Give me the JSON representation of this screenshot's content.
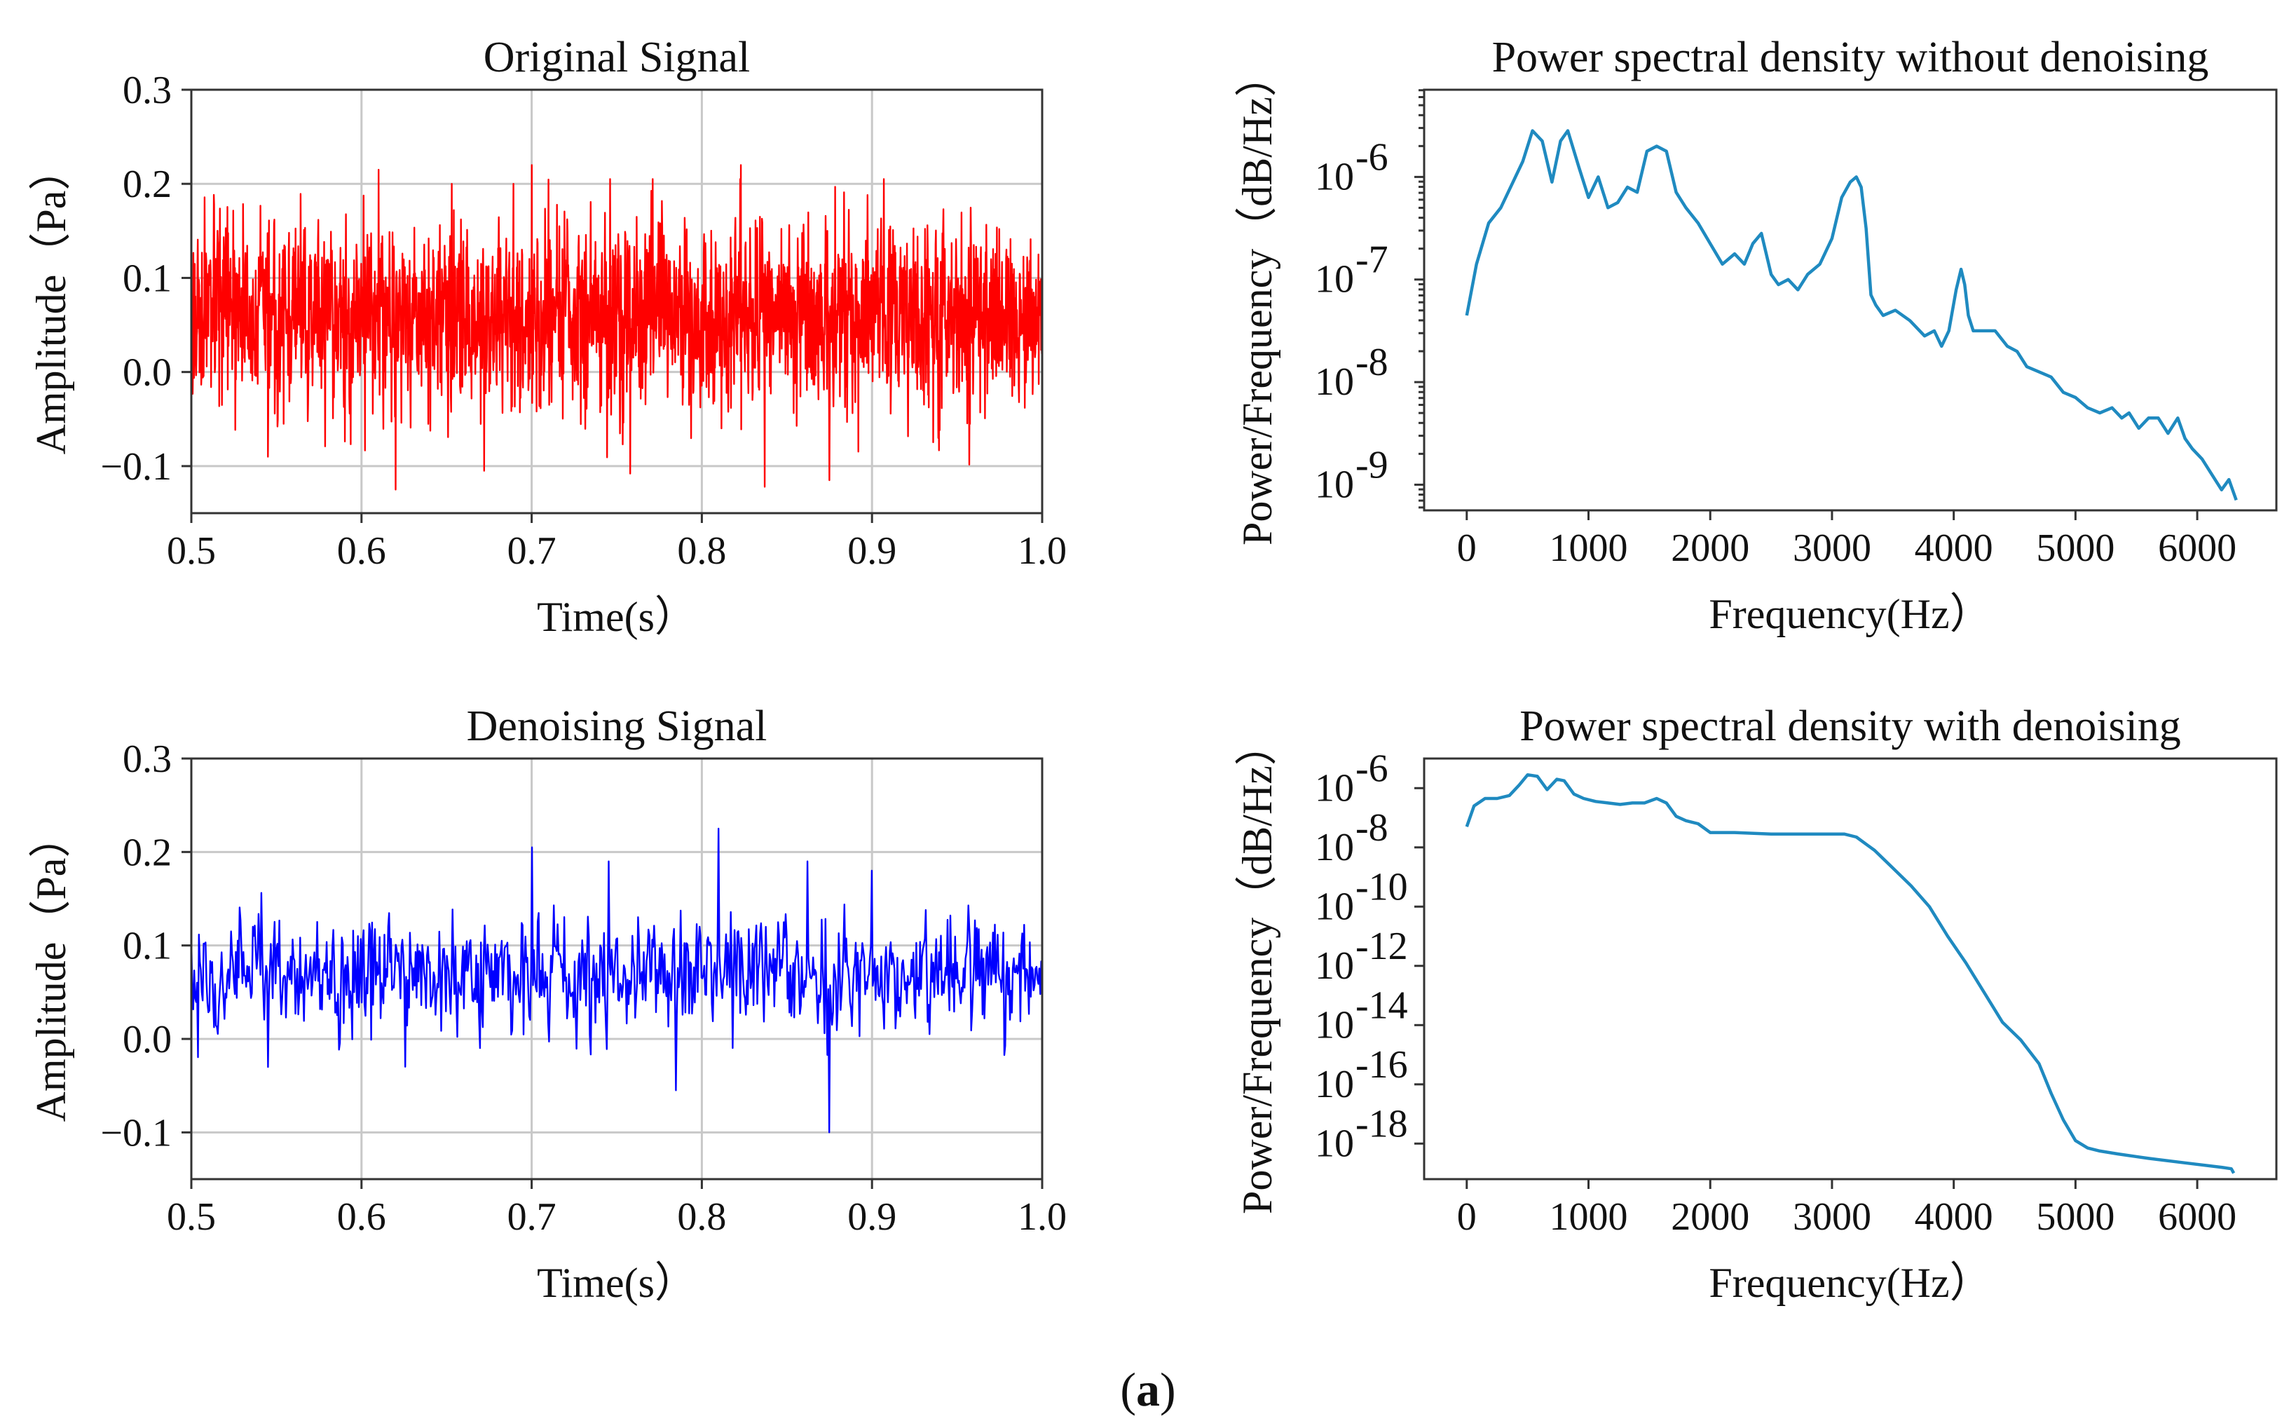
{
  "caption": {
    "prefix": "(",
    "letter": "a",
    "suffix": ")"
  },
  "chart_data": [
    {
      "id": "original",
      "type": "line",
      "title": "Original Signal",
      "xlabel": "Time(s）",
      "ylabel": "Amplitude（Pa）",
      "xlim": [
        0.5,
        1.0
      ],
      "ylim": [
        -0.15,
        0.3
      ],
      "xticks": [
        0.5,
        0.6,
        0.7,
        0.8,
        0.9,
        1.0
      ],
      "xtick_labels": [
        "0.5",
        "0.6",
        "0.7",
        "0.8",
        "0.9",
        "1.0"
      ],
      "yticks": [
        -0.1,
        0.0,
        0.1,
        0.2,
        0.3
      ],
      "ytick_labels": [
        "−0.1",
        "0.0",
        "0.1",
        "0.2",
        "0.3"
      ],
      "grid": true,
      "color": "#ff0000",
      "signal": {
        "mean": 0.06,
        "std": 0.055,
        "min": -0.125,
        "max": 0.225,
        "samples": 2500,
        "peaks": [
          [
            0.62,
            -0.125
          ],
          [
            0.837,
            -0.122
          ],
          [
            0.545,
            -0.09
          ],
          [
            0.672,
            -0.105
          ],
          [
            0.758,
            -0.108
          ],
          [
            0.875,
            -0.115
          ],
          [
            0.61,
            0.215
          ],
          [
            0.7,
            0.22
          ],
          [
            0.823,
            0.22
          ],
          [
            0.653,
            0.2
          ]
        ]
      }
    },
    {
      "id": "denoised",
      "type": "line",
      "title": "Denoising Signal",
      "xlabel": "Time(s）",
      "ylabel": "Amplitude（Pa）",
      "xlim": [
        0.5,
        1.0
      ],
      "ylim": [
        -0.15,
        0.3
      ],
      "xticks": [
        0.5,
        0.6,
        0.7,
        0.8,
        0.9,
        1.0
      ],
      "xtick_labels": [
        "0.5",
        "0.6",
        "0.7",
        "0.8",
        "0.9",
        "1.0"
      ],
      "yticks": [
        -0.1,
        0.0,
        0.1,
        0.2,
        0.3
      ],
      "ytick_labels": [
        "−0.1",
        "0.0",
        "0.1",
        "0.2",
        "0.3"
      ],
      "grid": true,
      "color": "#0000ff",
      "signal": {
        "mean": 0.07,
        "std": 0.035,
        "min": -0.1,
        "max": 0.225,
        "samples": 900,
        "peaks": [
          [
            0.81,
            0.225
          ],
          [
            0.7,
            0.205
          ],
          [
            0.875,
            -0.1
          ],
          [
            0.862,
            0.19
          ],
          [
            0.745,
            0.19
          ],
          [
            0.545,
            -0.03
          ],
          [
            0.785,
            -0.055
          ],
          [
            0.9,
            0.18
          ]
        ]
      }
    },
    {
      "id": "psd_raw",
      "type": "line",
      "scale": "log",
      "title": "Power spectral density without denoising",
      "xlabel": "Frequency(Hz）",
      "ylabel": "Power/Frequency（dB/Hz）",
      "xlim": [
        -350,
        6650
      ],
      "ylim_log10": [
        -9.25,
        -5.15
      ],
      "xticks": [
        0,
        1000,
        2000,
        3000,
        4000,
        5000,
        6000
      ],
      "xtick_labels": [
        "0",
        "1000",
        "2000",
        "3000",
        "4000",
        "5000",
        "6000"
      ],
      "yticks_log10": [
        -9,
        -8,
        -7,
        -6
      ],
      "ytick_bases": [
        "10",
        "10",
        "10",
        "10"
      ],
      "ytick_exponents": [
        "-9",
        "-8",
        "-7",
        "-6"
      ],
      "grid": false,
      "color": "#1f8ac0",
      "x": [
        0,
        80,
        180,
        280,
        380,
        460,
        540,
        620,
        700,
        770,
        830,
        920,
        1000,
        1080,
        1160,
        1240,
        1320,
        1400,
        1480,
        1560,
        1640,
        1720,
        1800,
        1900,
        2000,
        2100,
        2200,
        2280,
        2350,
        2420,
        2500,
        2560,
        2640,
        2720,
        2800,
        2900,
        3000,
        3080,
        3150,
        3200,
        3240,
        3280,
        3320,
        3360,
        3420,
        3520,
        3640,
        3760,
        3840,
        3900,
        3960,
        4020,
        4060,
        4090,
        4120,
        4160,
        4240,
        4340,
        4440,
        4520,
        4600,
        4700,
        4800,
        4900,
        5000,
        5100,
        5200,
        5300,
        5380,
        5440,
        5520,
        5600,
        5680,
        5760,
        5840,
        5900,
        5960,
        6040,
        6120,
        6200,
        6260,
        6320
      ],
      "y_log10": [
        -7.35,
        -6.85,
        -6.45,
        -6.3,
        -6.05,
        -5.85,
        -5.55,
        -5.65,
        -6.05,
        -5.65,
        -5.55,
        -5.9,
        -6.2,
        -6.0,
        -6.3,
        -6.25,
        -6.1,
        -6.15,
        -5.75,
        -5.7,
        -5.75,
        -6.15,
        -6.3,
        -6.45,
        -6.65,
        -6.85,
        -6.75,
        -6.85,
        -6.65,
        -6.55,
        -6.95,
        -7.05,
        -7.0,
        -7.1,
        -6.95,
        -6.85,
        -6.6,
        -6.2,
        -6.05,
        -6.0,
        -6.1,
        -6.5,
        -7.15,
        -7.25,
        -7.35,
        -7.3,
        -7.4,
        -7.55,
        -7.5,
        -7.65,
        -7.5,
        -7.1,
        -6.9,
        -7.05,
        -7.35,
        -7.5,
        -7.5,
        -7.5,
        -7.65,
        -7.7,
        -7.85,
        -7.9,
        -7.95,
        -8.1,
        -8.15,
        -8.25,
        -8.3,
        -8.25,
        -8.35,
        -8.3,
        -8.45,
        -8.35,
        -8.35,
        -8.5,
        -8.35,
        -8.55,
        -8.65,
        -8.75,
        -8.9,
        -9.05,
        -8.95,
        -9.15
      ]
    },
    {
      "id": "psd_denoised",
      "type": "line",
      "scale": "log",
      "title": "Power spectral density with denoising",
      "xlabel": "Frequency(Hz）",
      "ylabel": "Power/Frequency（dB/Hz）",
      "xlim": [
        -350,
        6650
      ],
      "ylim_log10": [
        -19.2,
        -5.0
      ],
      "xticks": [
        0,
        1000,
        2000,
        3000,
        4000,
        5000,
        6000
      ],
      "xtick_labels": [
        "0",
        "1000",
        "2000",
        "3000",
        "4000",
        "5000",
        "6000"
      ],
      "yticks_log10": [
        -18,
        -16,
        -14,
        -12,
        -10,
        -8,
        -6
      ],
      "ytick_bases": [
        "10",
        "10",
        "10",
        "10",
        "10",
        "10",
        "10"
      ],
      "ytick_exponents": [
        "-18",
        "-16",
        "-14",
        "-12",
        "-10",
        "-8",
        "-6"
      ],
      "grid": false,
      "color": "#1f8ac0",
      "x": [
        0,
        60,
        150,
        250,
        350,
        430,
        500,
        580,
        660,
        740,
        800,
        880,
        960,
        1060,
        1160,
        1260,
        1360,
        1460,
        1560,
        1640,
        1720,
        1800,
        1900,
        2000,
        2200,
        2500,
        2800,
        3000,
        3100,
        3200,
        3350,
        3500,
        3650,
        3800,
        3950,
        4100,
        4250,
        4400,
        4550,
        4700,
        4800,
        4900,
        5000,
        5100,
        5200,
        5350,
        5600,
        5900,
        6200,
        6280,
        6300
      ],
      "y_log10": [
        -7.3,
        -6.6,
        -6.35,
        -6.35,
        -6.25,
        -5.9,
        -5.55,
        -5.6,
        -6.05,
        -5.7,
        -5.75,
        -6.2,
        -6.35,
        -6.45,
        -6.5,
        -6.55,
        -6.5,
        -6.5,
        -6.35,
        -6.5,
        -6.95,
        -7.1,
        -7.2,
        -7.5,
        -7.5,
        -7.55,
        -7.55,
        -7.55,
        -7.55,
        -7.65,
        -8.1,
        -8.7,
        -9.3,
        -10.0,
        -11.0,
        -11.9,
        -12.9,
        -13.9,
        -14.5,
        -15.3,
        -16.3,
        -17.2,
        -17.9,
        -18.15,
        -18.25,
        -18.35,
        -18.5,
        -18.65,
        -18.8,
        -18.85,
        -19.0
      ]
    }
  ]
}
